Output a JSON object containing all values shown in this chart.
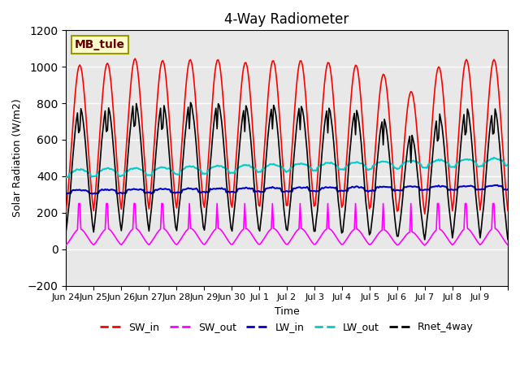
{
  "title": "4-Way Radiometer",
  "xlabel": "Time",
  "ylabel": "Solar Radiation (W/m2)",
  "ylim": [
    -200,
    1200
  ],
  "plot_bg_color": "#e8e8e8",
  "grid_color": "white",
  "annotation_label": "MB_tule",
  "annotation_bg": "#ffffcc",
  "annotation_border": "#999900",
  "n_days": 16,
  "lines": {
    "SW_in": {
      "color": "#ff0000",
      "lw": 1.2,
      "zorder": 3
    },
    "SW_out": {
      "color": "#ff00ff",
      "lw": 1.2,
      "zorder": 3
    },
    "LW_in": {
      "color": "#0000cc",
      "lw": 1.5,
      "zorder": 3
    },
    "LW_out": {
      "color": "#00cccc",
      "lw": 1.5,
      "zorder": 3
    },
    "Rnet_4way": {
      "color": "#000000",
      "lw": 1.2,
      "zorder": 4
    }
  },
  "legend_labels": [
    "SW_in",
    "SW_out",
    "LW_in",
    "LW_out",
    "Rnet_4way"
  ],
  "legend_colors": [
    "#ff0000",
    "#ff00ff",
    "#0000cc",
    "#00cccc",
    "#000000"
  ],
  "tick_labels": [
    "Jun 24",
    "Jun 25",
    "Jun 26",
    "Jun 27",
    "Jun 28",
    "Jun 29",
    "Jun 30",
    "Jul 1",
    "Jul 2",
    "Jul 3",
    "Jul 4",
    "Jul 5",
    "Jul 6",
    "Jul 7",
    "Jul 8",
    "Jul 9"
  ]
}
